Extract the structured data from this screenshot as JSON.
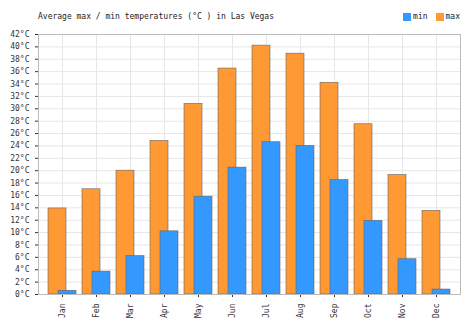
{
  "chart_data": {
    "type": "bar",
    "title": "Average max / min temperatures (°C ) in Las Vegas",
    "categories": [
      "Jan",
      "Feb",
      "Mar",
      "Apr",
      "May",
      "Jun",
      "Jul",
      "Aug",
      "Sep",
      "Oct",
      "Nov",
      "Dec"
    ],
    "series": [
      {
        "name": "min",
        "color": "#3399ff",
        "values": [
          0.6,
          3.7,
          6.2,
          10.2,
          15.8,
          20.5,
          24.6,
          24.0,
          18.5,
          11.9,
          5.7,
          0.8
        ]
      },
      {
        "name": "max",
        "color": "#ff9933",
        "values": [
          13.9,
          17.0,
          20.0,
          24.8,
          30.8,
          36.5,
          40.2,
          38.9,
          34.2,
          27.5,
          19.3,
          13.5
        ]
      }
    ],
    "ylim": [
      0,
      42
    ],
    "yticks": [
      {
        "value": 0,
        "label": "0°C"
      },
      {
        "value": 2,
        "label": "2°C"
      },
      {
        "value": 4,
        "label": "4°C"
      },
      {
        "value": 6,
        "label": "6°C"
      },
      {
        "value": 8,
        "label": "8°C"
      },
      {
        "value": 10,
        "label": "10°C"
      },
      {
        "value": 12,
        "label": "12°C"
      },
      {
        "value": 14,
        "label": "14°C"
      },
      {
        "value": 16,
        "label": "16°C"
      },
      {
        "value": 18,
        "label": "18°C"
      },
      {
        "value": 20,
        "label": "20°C"
      },
      {
        "value": 22,
        "label": "22°C"
      },
      {
        "value": 24,
        "label": "24°C"
      },
      {
        "value": 26,
        "label": "26°C"
      },
      {
        "value": 28,
        "label": "28°C"
      },
      {
        "value": 30,
        "label": "30°C"
      },
      {
        "value": 32,
        "label": "32°C"
      },
      {
        "value": 34,
        "label": "34°C"
      },
      {
        "value": 36,
        "label": "36°C"
      },
      {
        "value": 38,
        "label": "38°C"
      },
      {
        "value": 40,
        "label": "40°C"
      },
      {
        "value": 42,
        "label": "42°C"
      }
    ],
    "grid": true,
    "legend": "top-right"
  }
}
